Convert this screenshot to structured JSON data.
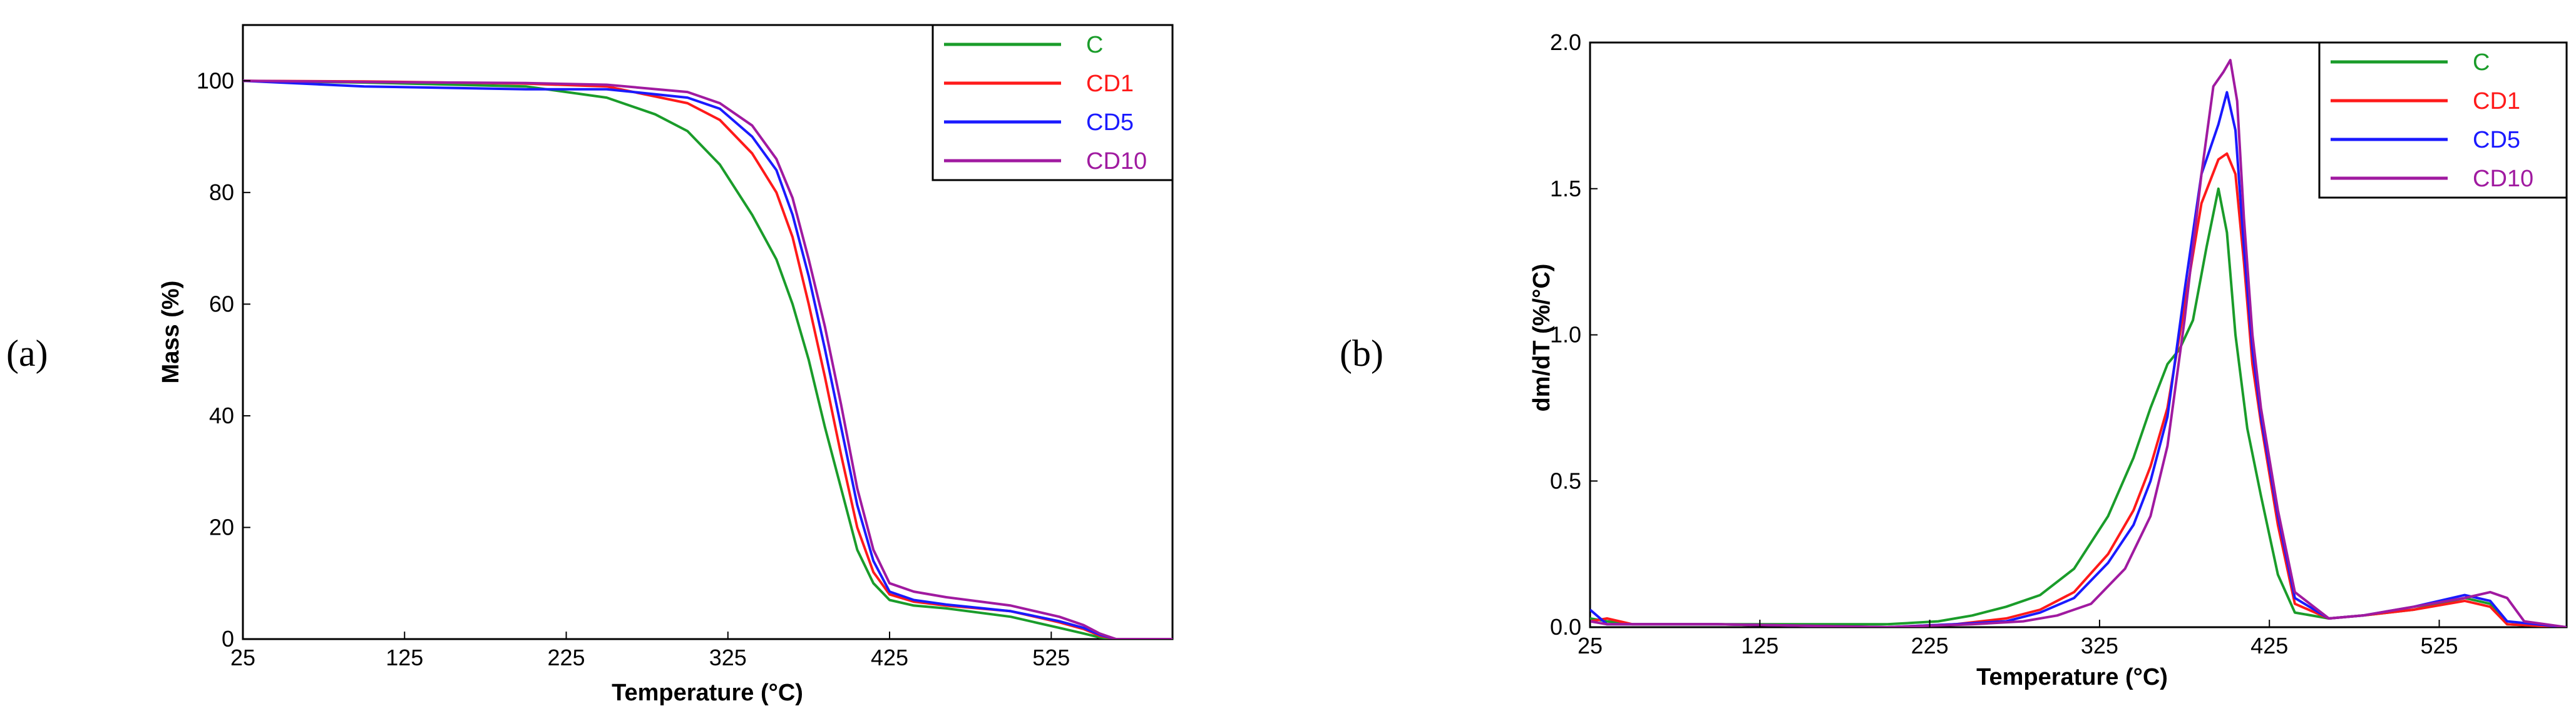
{
  "chart_data": [
    {
      "type": "line",
      "panel_label": "(a)",
      "xlabel": "Temperature (°C)",
      "ylabel": "Mass (%)",
      "xlim": [
        25,
        600
      ],
      "ylim": [
        0,
        110
      ],
      "xticks": [
        25,
        125,
        225,
        325,
        425,
        525
      ],
      "yticks": [
        0,
        20,
        40,
        60,
        80,
        100
      ],
      "legend": "top-right",
      "series": [
        {
          "name": "C",
          "color": "#1a9c2a",
          "x": [
            25,
            100,
            200,
            250,
            280,
            300,
            320,
            340,
            355,
            365,
            375,
            385,
            395,
            405,
            415,
            425,
            440,
            460,
            500,
            530,
            545,
            555,
            565,
            600
          ],
          "y": [
            100,
            99.7,
            99,
            97,
            94,
            91,
            85,
            76,
            68,
            60,
            50,
            38,
            27,
            16,
            10,
            7,
            6,
            5.5,
            4,
            2,
            1,
            0.3,
            0,
            0
          ]
        },
        {
          "name": "CD1",
          "color": "#ff1a1a",
          "x": [
            25,
            100,
            200,
            250,
            300,
            320,
            340,
            355,
            365,
            375,
            385,
            395,
            405,
            415,
            425,
            440,
            460,
            500,
            530,
            545,
            555,
            565,
            600
          ],
          "y": [
            100,
            99.9,
            99.5,
            99,
            96,
            93,
            87,
            80,
            72,
            60,
            47,
            33,
            20,
            12,
            8,
            6.7,
            6,
            5,
            3,
            1.8,
            0.6,
            0,
            0
          ]
        },
        {
          "name": "CD5",
          "color": "#1a1aff",
          "x": [
            25,
            100,
            200,
            250,
            300,
            320,
            340,
            355,
            365,
            375,
            385,
            395,
            405,
            415,
            425,
            440,
            460,
            500,
            530,
            545,
            555,
            565,
            600
          ],
          "y": [
            100,
            99,
            98.5,
            98.5,
            97,
            95,
            90,
            84,
            76,
            65,
            52,
            38,
            24,
            14,
            8.5,
            7,
            6.2,
            5,
            3.2,
            2,
            0.8,
            0,
            0
          ]
        },
        {
          "name": "CD10",
          "color": "#a01aa0",
          "x": [
            25,
            100,
            200,
            250,
            300,
            320,
            340,
            355,
            365,
            375,
            385,
            395,
            405,
            415,
            425,
            440,
            460,
            500,
            530,
            545,
            555,
            565,
            600
          ],
          "y": [
            100,
            99.8,
            99.6,
            99.3,
            98,
            96,
            92,
            86,
            79,
            68,
            56,
            42,
            27,
            16,
            10,
            8.5,
            7.5,
            6,
            4,
            2.5,
            1,
            0,
            0
          ]
        }
      ]
    },
    {
      "type": "line",
      "panel_label": "(b)",
      "xlabel": "Temperature (°C)",
      "ylabel": "dm/dT (%/°C)",
      "xlim": [
        25,
        600
      ],
      "ylim": [
        0,
        2.0
      ],
      "xticks": [
        25,
        125,
        225,
        325,
        425,
        525
      ],
      "yticks": [
        0.0,
        0.5,
        1.0,
        1.5,
        2.0
      ],
      "legend": "top-right",
      "series": [
        {
          "name": "C",
          "color": "#1a9c2a",
          "x": [
            25,
            35,
            50,
            100,
            200,
            230,
            250,
            270,
            290,
            310,
            330,
            345,
            355,
            365,
            372,
            380,
            388,
            395,
            400,
            405,
            412,
            420,
            430,
            440,
            460,
            480,
            510,
            540,
            555,
            565,
            600
          ],
          "y": [
            0.03,
            0.02,
            0.01,
            0.01,
            0.01,
            0.02,
            0.04,
            0.07,
            0.11,
            0.2,
            0.38,
            0.58,
            0.75,
            0.9,
            0.95,
            1.05,
            1.3,
            1.5,
            1.35,
            1.0,
            0.68,
            0.45,
            0.18,
            0.05,
            0.03,
            0.04,
            0.06,
            0.1,
            0.08,
            0.01,
            0.0
          ]
        },
        {
          "name": "CD1",
          "color": "#ff1a1a",
          "x": [
            25,
            35,
            50,
            100,
            200,
            240,
            270,
            290,
            310,
            330,
            345,
            355,
            365,
            375,
            385,
            395,
            400,
            405,
            410,
            415,
            420,
            430,
            440,
            460,
            480,
            510,
            540,
            555,
            565,
            600
          ],
          "y": [
            0.02,
            0.03,
            0.01,
            0.01,
            0.0,
            0.01,
            0.03,
            0.06,
            0.12,
            0.25,
            0.4,
            0.55,
            0.75,
            1.1,
            1.45,
            1.6,
            1.62,
            1.55,
            1.25,
            0.9,
            0.7,
            0.35,
            0.08,
            0.03,
            0.04,
            0.06,
            0.09,
            0.07,
            0.01,
            0.0
          ]
        },
        {
          "name": "CD5",
          "color": "#1a1aff",
          "x": [
            25,
            35,
            50,
            100,
            200,
            240,
            270,
            290,
            310,
            330,
            345,
            355,
            365,
            375,
            385,
            395,
            400,
            405,
            410,
            415,
            420,
            430,
            440,
            460,
            480,
            510,
            540,
            555,
            565,
            600
          ],
          "y": [
            0.06,
            0.01,
            0.01,
            0.01,
            0.0,
            0.01,
            0.02,
            0.05,
            0.1,
            0.22,
            0.35,
            0.5,
            0.72,
            1.15,
            1.55,
            1.72,
            1.83,
            1.7,
            1.3,
            0.95,
            0.72,
            0.38,
            0.1,
            0.03,
            0.04,
            0.07,
            0.11,
            0.09,
            0.02,
            0.0
          ]
        },
        {
          "name": "CD10",
          "color": "#a01aa0",
          "x": [
            25,
            35,
            50,
            100,
            200,
            250,
            280,
            300,
            320,
            340,
            355,
            365,
            375,
            385,
            392,
            398,
            402,
            406,
            410,
            415,
            420,
            430,
            440,
            460,
            480,
            510,
            540,
            555,
            565,
            575,
            600
          ],
          "y": [
            0.02,
            0.01,
            0.01,
            0.01,
            0.0,
            0.01,
            0.02,
            0.04,
            0.08,
            0.2,
            0.38,
            0.62,
            1.05,
            1.55,
            1.85,
            1.9,
            1.94,
            1.8,
            1.4,
            1.0,
            0.75,
            0.4,
            0.12,
            0.03,
            0.04,
            0.07,
            0.1,
            0.12,
            0.1,
            0.02,
            0.0
          ]
        }
      ]
    }
  ]
}
